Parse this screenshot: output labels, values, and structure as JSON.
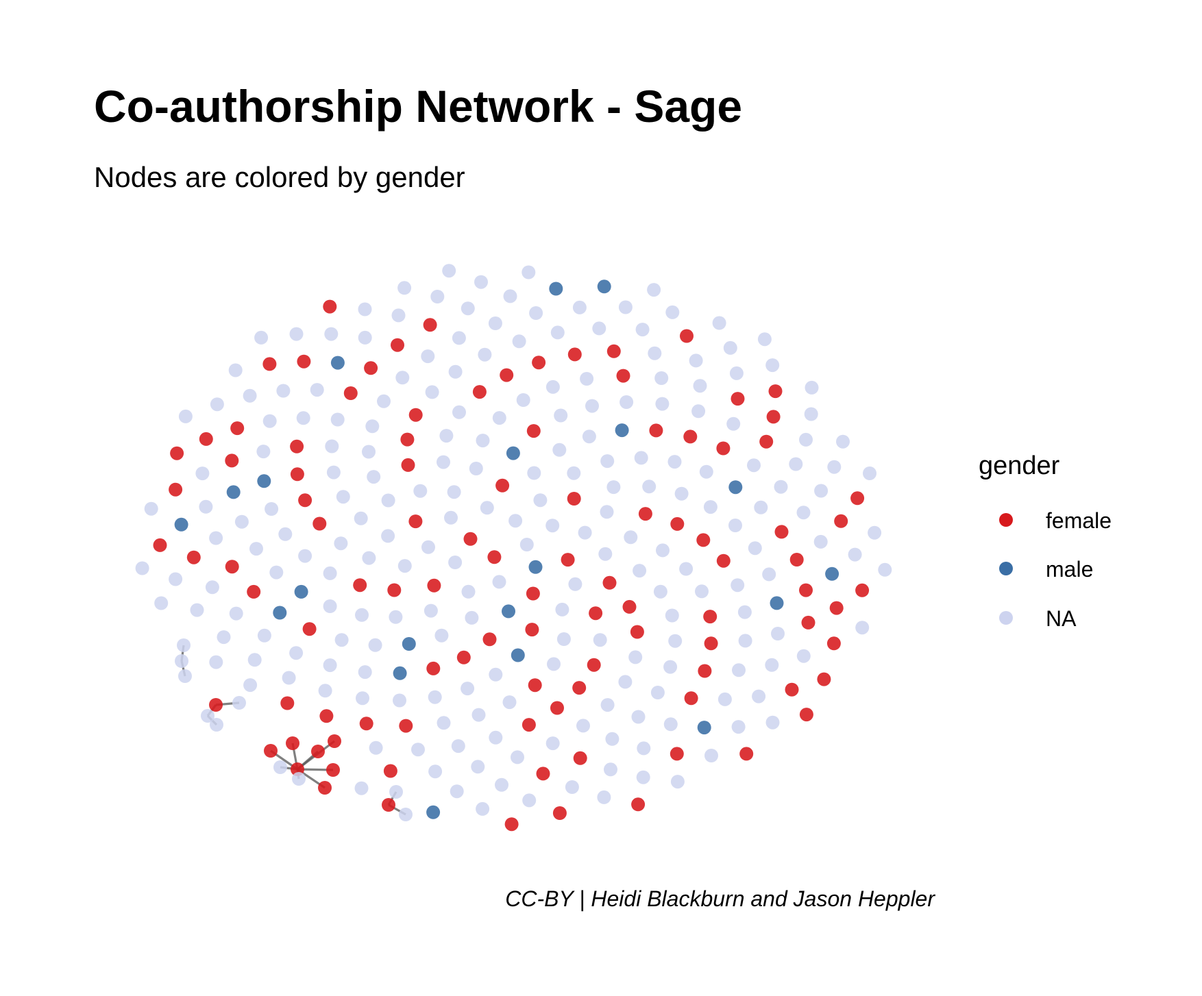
{
  "title": "Co-authorship Network - Sage",
  "subtitle": "Nodes are colored by gender",
  "caption": "CC-BY | Heidi Blackburn and Jason Heppler",
  "legend": {
    "title": "gender",
    "items": [
      {
        "key": "female",
        "label": "female",
        "color": "#d7191c"
      },
      {
        "key": "male",
        "label": "male",
        "color": "#3a6ea5"
      },
      {
        "key": "NA",
        "label": "NA",
        "color": "#cdd3ef"
      }
    ]
  },
  "colors": {
    "female": "#d7191c",
    "male": "#3a6ea5",
    "NA": "#cdd3ef",
    "edge": "#555555"
  },
  "diagram": {
    "type": "network",
    "node_counts": {
      "female": 103,
      "male": 20,
      "NA": 228
    },
    "components": [
      {
        "type": "pair",
        "genders": [
          "NA",
          "NA"
        ]
      },
      {
        "type": "triad",
        "genders": [
          "female",
          "NA",
          "NA",
          "NA"
        ]
      },
      {
        "type": "star",
        "center": "female",
        "leaves": [
          "female",
          "female",
          "female",
          "female",
          "female",
          "female",
          "NA",
          "NA"
        ]
      },
      {
        "type": "triad",
        "genders": [
          "female",
          "NA",
          "NA"
        ]
      }
    ]
  }
}
